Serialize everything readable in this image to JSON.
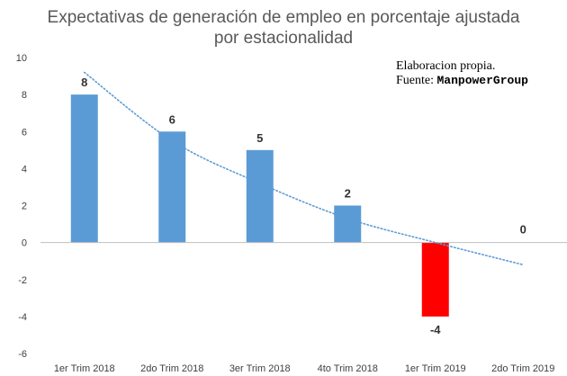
{
  "chart_data": {
    "type": "bar",
    "title": "Expectativas de generación de empleo en porcentaje ajustada por estacionalidad",
    "title_lines": [
      "Expectativas de generación de empleo en porcentaje ajustada",
      "por estacionalidad"
    ],
    "xlabel": "",
    "ylabel": "",
    "categories": [
      "1er Trim 2018",
      "2do Trim 2018",
      "3er Trim 2018",
      "4to Trim 2018",
      "1er Trim 2019",
      "2do Trim 2019"
    ],
    "values": [
      8,
      6,
      5,
      2,
      -4,
      0
    ],
    "data_labels": [
      "8",
      "6",
      "5",
      "2",
      "-4",
      "0"
    ],
    "ylim": [
      -6,
      10
    ],
    "yticks": [
      -6,
      -4,
      -2,
      0,
      2,
      4,
      6,
      8,
      10
    ],
    "trendline": {
      "type": "exponential-like",
      "style": "dotted",
      "color": "#5b9bd5",
      "points": [
        [
          0,
          9.2
        ],
        [
          1,
          5.5
        ],
        [
          2,
          3.2
        ],
        [
          3,
          1.3
        ],
        [
          4,
          0.0
        ],
        [
          5,
          -1.2
        ]
      ]
    },
    "grid": false,
    "colors": {
      "positive": "#5b9bd5",
      "negative": "#ff0000",
      "axis": "#bfbfbf",
      "title": "#595959"
    }
  },
  "annotation": {
    "line1": "Elaboracion propia.",
    "line2_prefix": "Fuente: ",
    "line2_brand": "ManpowerGroup"
  }
}
